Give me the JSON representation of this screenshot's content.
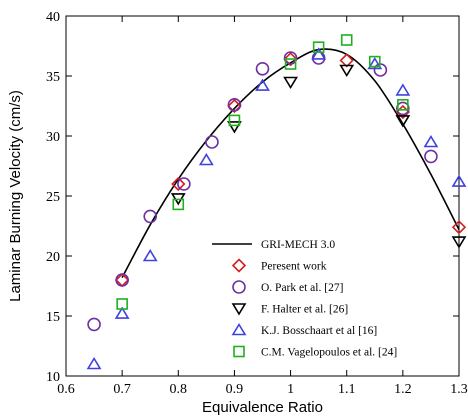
{
  "chart_data": {
    "type": "scatter",
    "title": "",
    "xlabel": "Equivalence Ratio",
    "ylabel": "Laminar Burning Velocity (cm/s)",
    "xlim": [
      0.6,
      1.3
    ],
    "ylim": [
      10,
      40
    ],
    "x_ticks": [
      "0.6",
      "0.7",
      "0.8",
      "0.9",
      "1",
      "1.1",
      "1.2",
      "1.3"
    ],
    "y_ticks": [
      "10",
      "15",
      "20",
      "25",
      "30",
      "35",
      "40"
    ],
    "legend_position": "bottom-right",
    "series": [
      {
        "name": "GRI-MECH 3.0",
        "kind": "line",
        "color": "#000000",
        "points": [
          [
            0.7,
            18.2
          ],
          [
            0.75,
            22.6
          ],
          [
            0.8,
            26.4
          ],
          [
            0.85,
            29.6
          ],
          [
            0.9,
            32.3
          ],
          [
            0.95,
            34.5
          ],
          [
            1.0,
            36.1
          ],
          [
            1.05,
            37.2
          ],
          [
            1.1,
            36.8
          ],
          [
            1.15,
            34.6
          ],
          [
            1.2,
            31.0
          ],
          [
            1.25,
            26.8
          ],
          [
            1.3,
            22.2
          ]
        ]
      },
      {
        "name": "Peresent work",
        "marker": "diamond",
        "color": "#d02020",
        "points": [
          [
            0.7,
            18.0
          ],
          [
            0.8,
            26.0
          ],
          [
            0.9,
            32.5
          ],
          [
            1.0,
            36.4
          ],
          [
            1.1,
            36.3
          ],
          [
            1.2,
            32.0
          ],
          [
            1.3,
            22.4
          ]
        ]
      },
      {
        "name": "O. Park et al. [27]",
        "marker": "circle",
        "color": "#7030a0",
        "points": [
          [
            0.65,
            14.3
          ],
          [
            0.7,
            18.0
          ],
          [
            0.75,
            23.3
          ],
          [
            0.81,
            26.0
          ],
          [
            0.86,
            29.5
          ],
          [
            0.9,
            32.6
          ],
          [
            0.95,
            35.6
          ],
          [
            1.0,
            36.5
          ],
          [
            1.05,
            36.5
          ],
          [
            1.16,
            35.5
          ],
          [
            1.2,
            32.3
          ],
          [
            1.25,
            28.3
          ]
        ]
      },
      {
        "name": "F. Halter et al. [26]",
        "marker": "triangle-down",
        "color": "#000000",
        "points": [
          [
            0.8,
            24.8
          ],
          [
            0.9,
            30.8
          ],
          [
            1.0,
            34.5
          ],
          [
            1.1,
            35.5
          ],
          [
            1.2,
            31.3
          ],
          [
            1.3,
            21.2
          ]
        ]
      },
      {
        "name": "K.J. Bosschaart et al [16]",
        "marker": "triangle-up",
        "color": "#4040e0",
        "points": [
          [
            0.65,
            11.0
          ],
          [
            0.7,
            15.2
          ],
          [
            0.75,
            20.0
          ],
          [
            0.85,
            28.0
          ],
          [
            0.95,
            34.2
          ],
          [
            1.05,
            36.8
          ],
          [
            1.15,
            36.0
          ],
          [
            1.2,
            33.8
          ],
          [
            1.25,
            29.5
          ],
          [
            1.3,
            26.2
          ]
        ]
      },
      {
        "name": "C.M. Vagelopoulos et al. [24]",
        "marker": "square",
        "color": "#20b020",
        "points": [
          [
            0.7,
            16.0
          ],
          [
            0.8,
            24.3
          ],
          [
            0.9,
            31.3
          ],
          [
            1.0,
            36.0
          ],
          [
            1.05,
            37.4
          ],
          [
            1.1,
            38.0
          ],
          [
            1.15,
            36.2
          ],
          [
            1.2,
            32.6
          ]
        ]
      }
    ]
  }
}
